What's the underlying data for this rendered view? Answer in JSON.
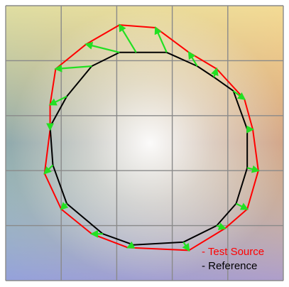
{
  "chart_data": {
    "type": "color-vector-graphic",
    "grid": true,
    "grid_divisions": 5,
    "legend_position": "bottom-right",
    "colors": {
      "test_source": "#ff0000",
      "reference": "#000000",
      "arrow": "#22e022",
      "grid": "#8a8a8a",
      "bg_top_left": "#7ecf72",
      "bg_top": "#f6f3a8",
      "bg_top_right": "#f7a25f",
      "bg_right": "#f2a2a6",
      "bg_bottom_right": "#d98fd2",
      "bg_bottom": "#a79ae6",
      "bg_bottom_left": "#6faad2",
      "bg_left": "#8fd6b2",
      "bg_center": "#ffffff"
    },
    "series": [
      {
        "name": "Test Source",
        "key": "test",
        "points": [
          [
            0.41,
            0.07
          ],
          [
            0.54,
            0.08
          ],
          [
            0.66,
            0.17
          ],
          [
            0.76,
            0.23
          ],
          [
            0.86,
            0.34
          ],
          [
            0.89,
            0.45
          ],
          [
            0.91,
            0.6
          ],
          [
            0.87,
            0.74
          ],
          [
            0.79,
            0.81
          ],
          [
            0.66,
            0.89
          ],
          [
            0.44,
            0.88
          ],
          [
            0.31,
            0.83
          ],
          [
            0.2,
            0.74
          ],
          [
            0.14,
            0.61
          ],
          [
            0.16,
            0.45
          ],
          [
            0.16,
            0.36
          ],
          [
            0.18,
            0.23
          ],
          [
            0.29,
            0.14
          ]
        ]
      },
      {
        "name": "Reference",
        "key": "reference",
        "points": [
          [
            0.47,
            0.17
          ],
          [
            0.58,
            0.17
          ],
          [
            0.69,
            0.22
          ],
          [
            0.75,
            0.26
          ],
          [
            0.82,
            0.31
          ],
          [
            0.87,
            0.45
          ],
          [
            0.87,
            0.59
          ],
          [
            0.83,
            0.72
          ],
          [
            0.76,
            0.8
          ],
          [
            0.64,
            0.86
          ],
          [
            0.46,
            0.87
          ],
          [
            0.35,
            0.83
          ],
          [
            0.22,
            0.72
          ],
          [
            0.17,
            0.58
          ],
          [
            0.16,
            0.44
          ],
          [
            0.22,
            0.33
          ],
          [
            0.31,
            0.22
          ],
          [
            0.41,
            0.17
          ]
        ]
      }
    ],
    "legend": {
      "test_source": "- Test Source",
      "reference": "- Reference"
    }
  }
}
